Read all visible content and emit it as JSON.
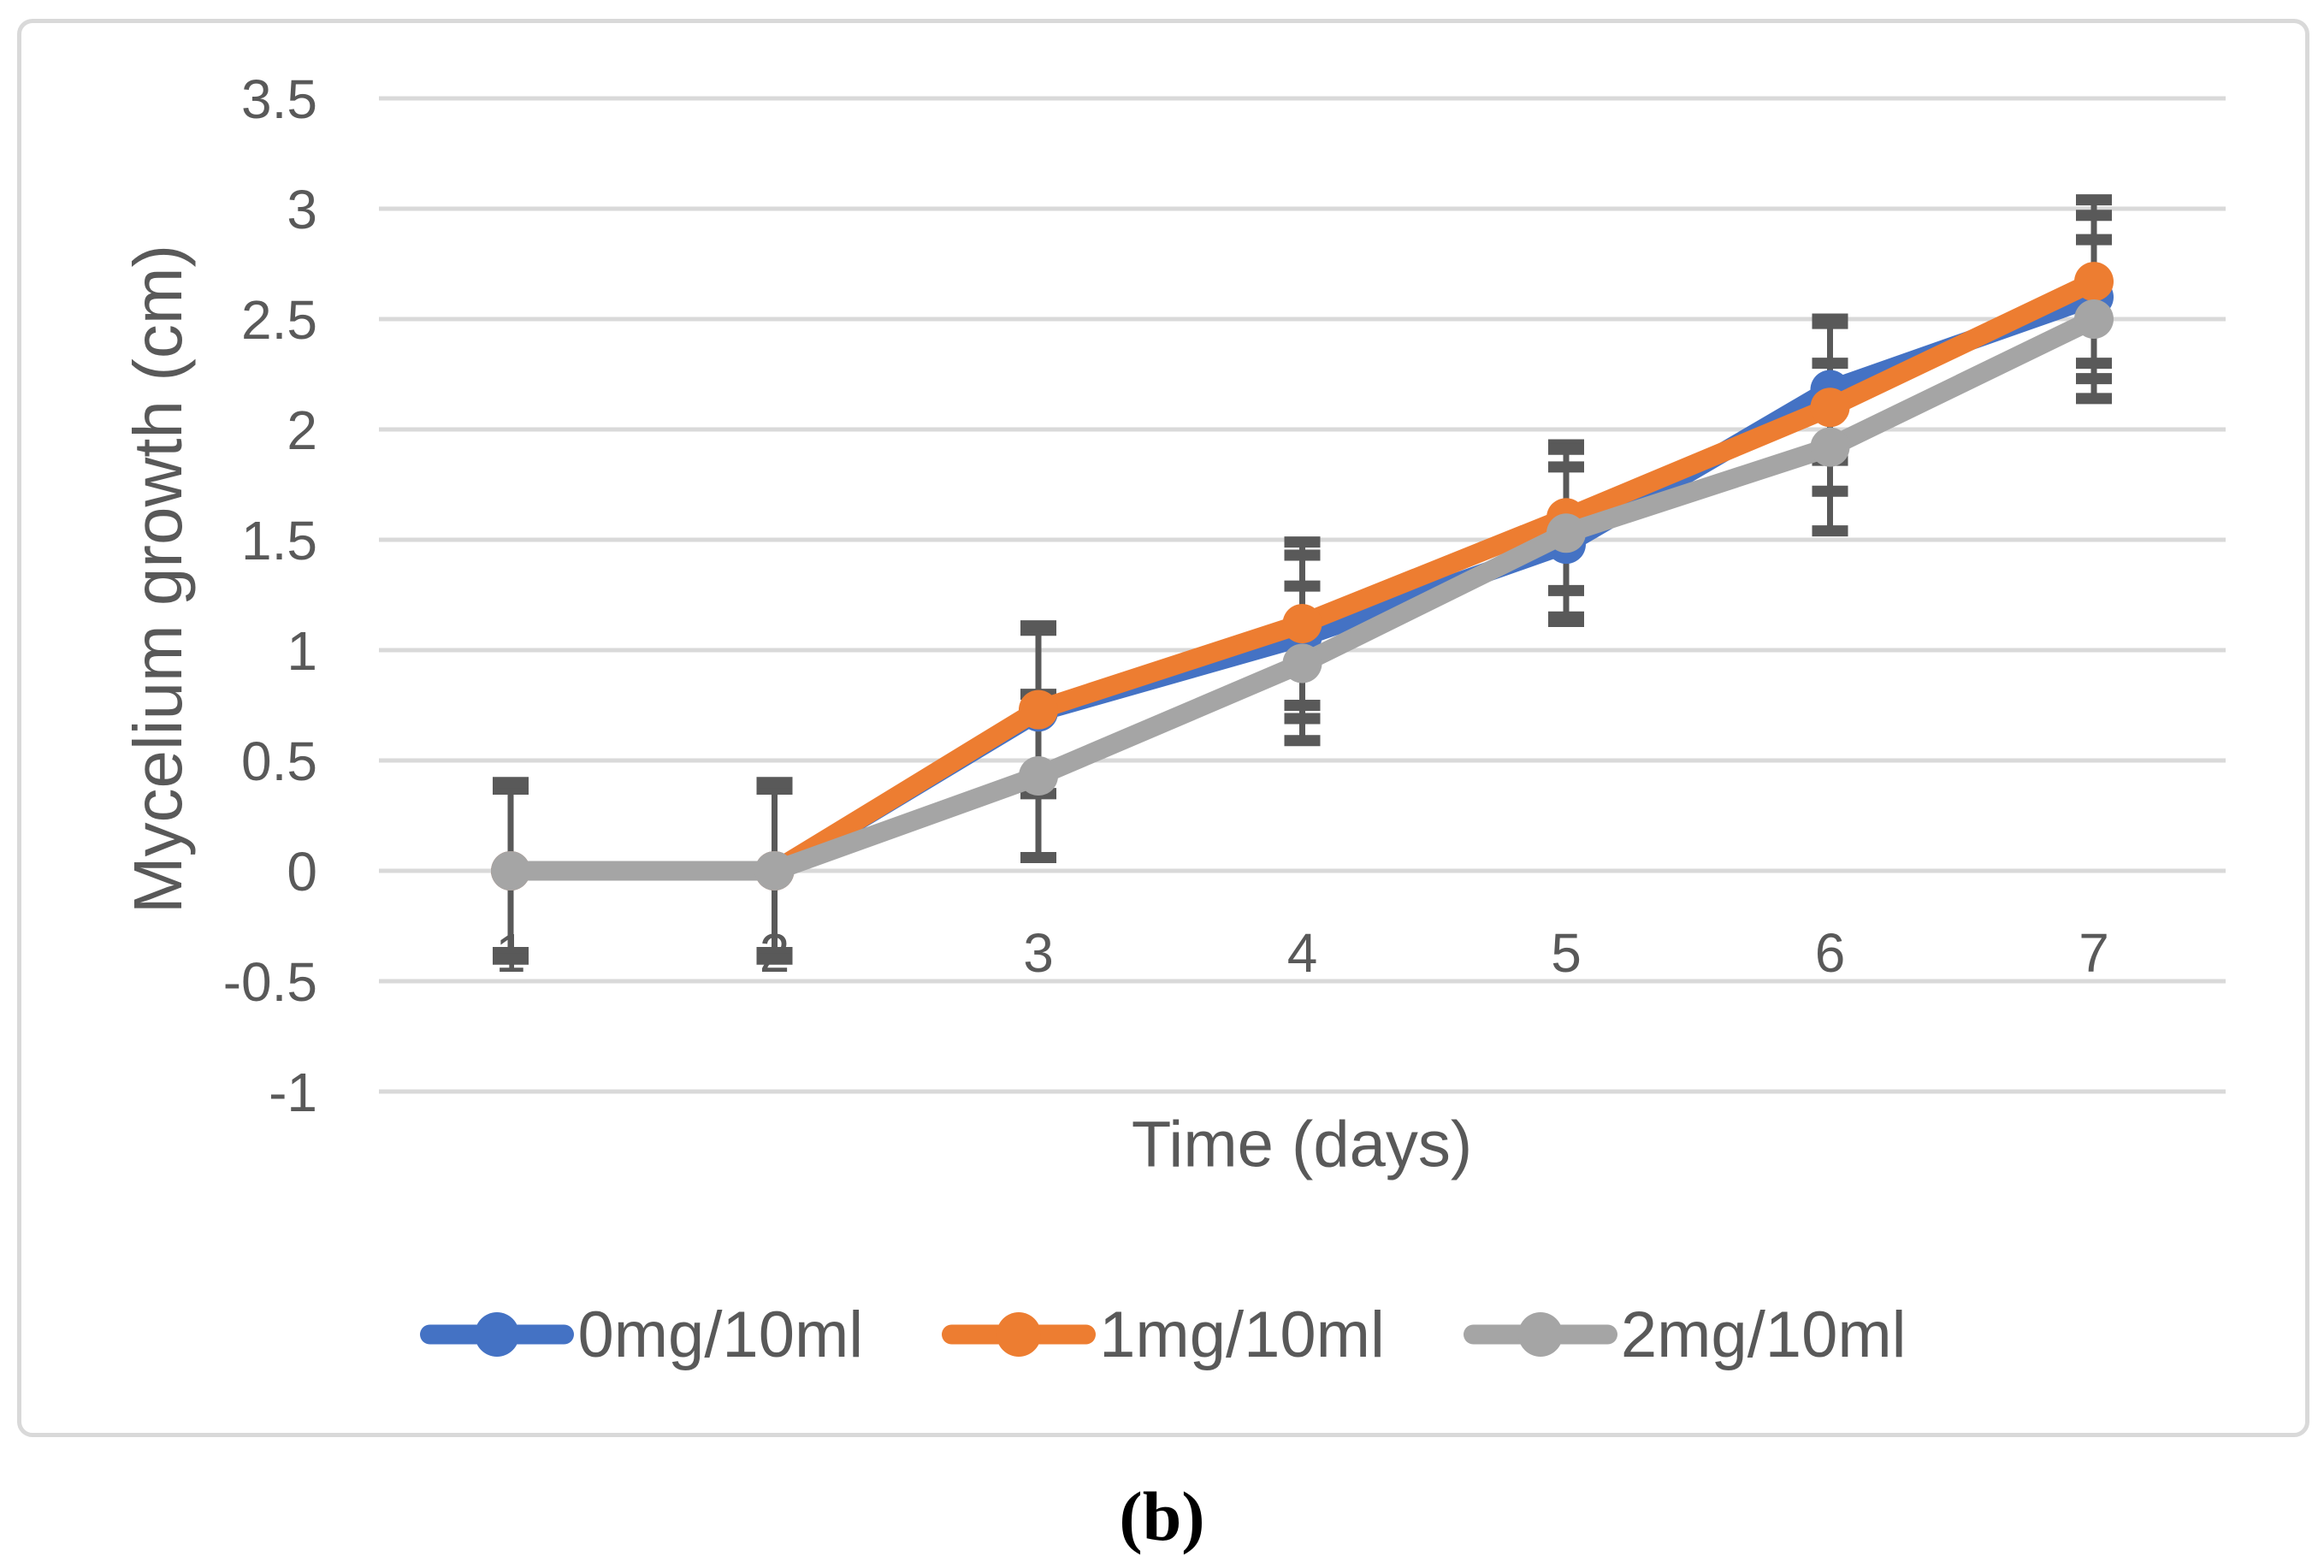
{
  "caption": "(b)",
  "chart_data": {
    "type": "line",
    "title": "",
    "xlabel": "Time (days)",
    "ylabel": "Mycelium growth (cm)",
    "categories": [
      1,
      2,
      3,
      4,
      5,
      6,
      7
    ],
    "ylim": [
      -1,
      3.5
    ],
    "yticks": [
      3.5,
      3,
      2.5,
      2,
      1.5,
      1,
      0.5,
      0,
      -0.5,
      -1
    ],
    "grid": true,
    "legend_position": "bottom",
    "error_bars": true,
    "colors": {
      "gridline": "#d9d9d9",
      "error_bar": "#595959",
      "text": "#595959",
      "panel_border": "#d9d9d9",
      "background": "#ffffff"
    },
    "series": [
      {
        "name": "0mg/10ml",
        "color": "#4472C4",
        "values": [
          0,
          0,
          0.72,
          1.06,
          1.48,
          2.18,
          2.6
        ],
        "errors": [
          0.38,
          0.38,
          0.37,
          0.37,
          0.35,
          0.32,
          0.37
        ]
      },
      {
        "name": "1mg/10ml",
        "color": "#ED7D31",
        "values": [
          0,
          0,
          0.73,
          1.12,
          1.6,
          2.1,
          2.67
        ],
        "errors": [
          0.37,
          0.37,
          0.38,
          0.37,
          0.33,
          0.38,
          0.37
        ]
      },
      {
        "name": "2mg/10ml",
        "color": "#A5A5A5",
        "values": [
          0,
          0,
          0.43,
          0.94,
          1.53,
          1.92,
          2.5
        ],
        "errors": [
          0.4,
          0.4,
          0.37,
          0.35,
          0.38,
          0.38,
          0.36
        ]
      }
    ]
  }
}
